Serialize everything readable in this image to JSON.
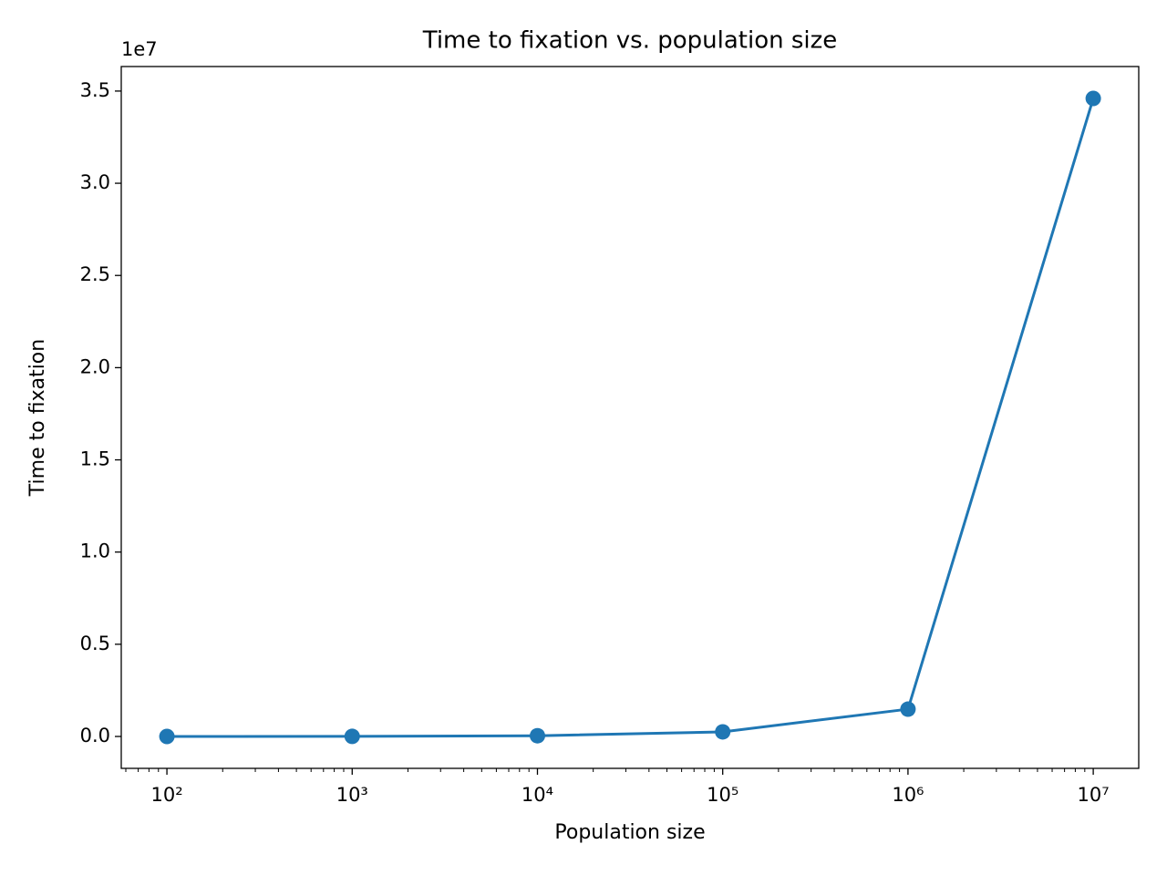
{
  "chart_data": {
    "type": "line",
    "title": "Time to fixation vs. population size",
    "x_label": "Population size",
    "y_label": "Time to fixation",
    "y_offset_label": "1e7",
    "x_scale": "log",
    "x": [
      100,
      1000,
      10000,
      100000,
      1000000,
      10000000
    ],
    "series": [
      {
        "name": "Time to fixation",
        "color": "#1f77b4",
        "values": [
          400,
          4000,
          40000,
          250000,
          1480000,
          34600000
        ]
      }
    ],
    "xlim": [
      56.7,
      17600000
    ],
    "ylim": [
      -1730000,
      36330000
    ],
    "xticks": [
      {
        "value": 100,
        "label": "10²"
      },
      {
        "value": 1000,
        "label": "10³"
      },
      {
        "value": 10000,
        "label": "10⁴"
      },
      {
        "value": 100000,
        "label": "10⁵"
      },
      {
        "value": 1000000,
        "label": "10⁶"
      },
      {
        "value": 10000000,
        "label": "10⁷"
      }
    ],
    "xminorticks": [
      60,
      70,
      80,
      90,
      200,
      300,
      400,
      500,
      600,
      700,
      800,
      900,
      2000,
      3000,
      4000,
      5000,
      6000,
      7000,
      8000,
      9000,
      20000,
      30000,
      40000,
      50000,
      60000,
      70000,
      80000,
      90000,
      200000,
      300000,
      400000,
      500000,
      600000,
      700000,
      800000,
      900000,
      2000000,
      3000000,
      4000000,
      5000000,
      6000000,
      7000000,
      8000000,
      9000000
    ],
    "yticks": [
      {
        "value": 0,
        "label": "0.0"
      },
      {
        "value": 5000000,
        "label": "0.5"
      },
      {
        "value": 10000000,
        "label": "1.0"
      },
      {
        "value": 15000000,
        "label": "1.5"
      },
      {
        "value": 20000000,
        "label": "2.0"
      },
      {
        "value": 25000000,
        "label": "2.5"
      },
      {
        "value": 30000000,
        "label": "3.0"
      },
      {
        "value": 35000000,
        "label": "3.5"
      }
    ],
    "grid": false
  }
}
